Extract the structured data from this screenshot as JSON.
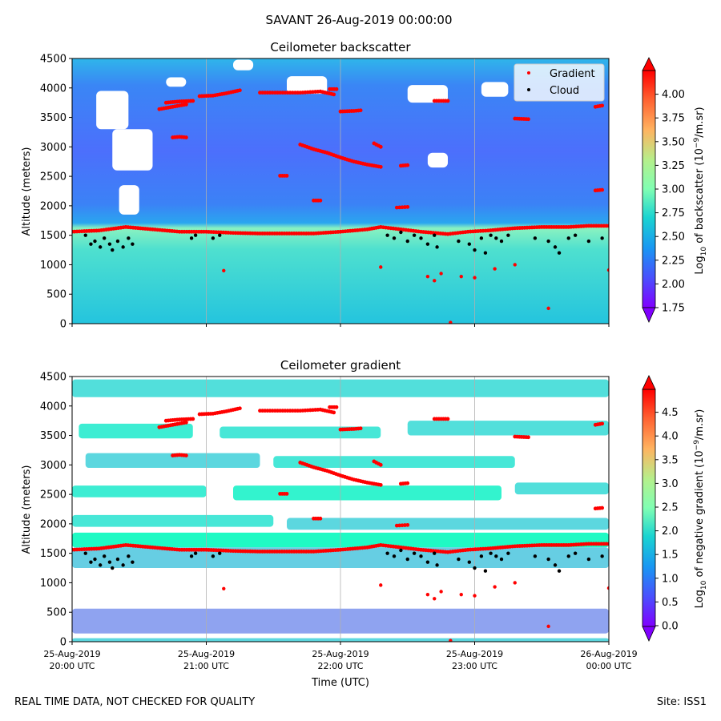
{
  "suptitle": "SAVANT 26-Aug-2019 00:00:00",
  "footer_left": "REAL TIME DATA, NOT CHECKED FOR QUALITY",
  "footer_right": "Site: ISS1",
  "colors": {
    "gradient_marker": "#ff0000",
    "cloud_marker": "#000000",
    "grid": "#b0b0b0"
  },
  "chart_data": [
    {
      "type": "heatmap",
      "title": "Ceilometer backscatter",
      "ylabel": "Altitude (meters)",
      "ylim": [
        0,
        4500
      ],
      "yticks": [
        0,
        500,
        1000,
        1500,
        2000,
        2500,
        3000,
        3500,
        4000,
        4500
      ],
      "xlim": [
        0,
        4
      ],
      "x_tick_labels": [],
      "vertical_grid": true,
      "colormap": "rainbow",
      "colorbar": {
        "label_prefix": "Log",
        "label_sub": "10",
        "label_suffix": " of backscatter (10",
        "label_exp": "−9",
        "label_end": "/m.sr)",
        "range": [
          1.75,
          4.25
        ],
        "ticks": [
          "1.75",
          "2.00",
          "2.25",
          "2.50",
          "2.75",
          "3.00",
          "3.25",
          "3.50",
          "3.75",
          "4.00"
        ],
        "extend": "both"
      },
      "legend": {
        "placement": "top-right",
        "entries": [
          "Gradient",
          "Cloud"
        ]
      },
      "clear_air_regions_altitude": [
        [
          0.18,
          0.42,
          3300,
          3950
        ],
        [
          0.3,
          0.6,
          2600,
          3300
        ],
        [
          0.35,
          0.5,
          1850,
          2350
        ],
        [
          1.6,
          1.9,
          3900,
          4200
        ],
        [
          2.5,
          2.8,
          3750,
          4050
        ],
        [
          3.05,
          3.25,
          3850,
          4100
        ],
        [
          2.65,
          2.8,
          2650,
          2900
        ],
        [
          1.2,
          1.35,
          4300,
          4480
        ],
        [
          0.7,
          0.85,
          4020,
          4180
        ]
      ]
    },
    {
      "type": "heatmap",
      "title": "Ceilometer gradient",
      "ylabel": "Altitude (meters)",
      "xlabel": "Time (UTC)",
      "ylim": [
        0,
        4500
      ],
      "yticks": [
        0,
        500,
        1000,
        1500,
        2000,
        2500,
        3000,
        3500,
        4000,
        4500
      ],
      "xlim": [
        0,
        4
      ],
      "x_tick_labels": [
        [
          "25-Aug-2019",
          "20:00 UTC"
        ],
        [
          "25-Aug-2019",
          "21:00 UTC"
        ],
        [
          "25-Aug-2019",
          "22:00 UTC"
        ],
        [
          "25-Aug-2019",
          "23:00 UTC"
        ],
        [
          "26-Aug-2019",
          "00:00 UTC"
        ]
      ],
      "vertical_grid": true,
      "colormap": "rainbow",
      "colorbar": {
        "label_prefix": "Log",
        "label_sub": "10",
        "label_suffix": " of negative gradient (10",
        "label_exp": "−9",
        "label_end": "/m.sr)",
        "range": [
          0,
          5
        ],
        "ticks": [
          "0.0",
          "0.5",
          "1.0",
          "1.5",
          "2.0",
          "2.5",
          "3.0",
          "3.5",
          "4.0",
          "4.5"
        ],
        "extend": "both"
      },
      "layers_altitude": [
        [
          0.0,
          4.0,
          4150,
          4450,
          1.7
        ],
        [
          0.05,
          0.9,
          3450,
          3700,
          1.9
        ],
        [
          1.1,
          2.3,
          3450,
          3650,
          1.8
        ],
        [
          2.5,
          4.0,
          3500,
          3750,
          1.7
        ],
        [
          0.1,
          1.4,
          2950,
          3200,
          1.6
        ],
        [
          1.5,
          3.3,
          2950,
          3150,
          1.8
        ],
        [
          0.0,
          1.0,
          2450,
          2650,
          1.9
        ],
        [
          1.2,
          3.2,
          2400,
          2650,
          2.0
        ],
        [
          3.3,
          4.0,
          2500,
          2700,
          1.7
        ],
        [
          0.0,
          1.5,
          1950,
          2150,
          1.8
        ],
        [
          1.6,
          4.0,
          1900,
          2100,
          1.6
        ],
        [
          0.0,
          4.0,
          1600,
          1850,
          2.2
        ],
        [
          0.0,
          4.0,
          1250,
          1600,
          1.5
        ],
        [
          0.0,
          4.0,
          140,
          560,
          1.1
        ],
        [
          0.0,
          4.0,
          0,
          60,
          1.6
        ]
      ]
    }
  ],
  "markers": {
    "cloud_time_altitude": [
      [
        0.1,
        1500
      ],
      [
        0.14,
        1350
      ],
      [
        0.17,
        1400
      ],
      [
        0.21,
        1300
      ],
      [
        0.24,
        1450
      ],
      [
        0.28,
        1350
      ],
      [
        0.3,
        1250
      ],
      [
        0.34,
        1400
      ],
      [
        0.38,
        1300
      ],
      [
        0.42,
        1450
      ],
      [
        0.45,
        1350
      ],
      [
        0.89,
        1450
      ],
      [
        0.92,
        1500
      ],
      [
        1.05,
        1450
      ],
      [
        1.1,
        1500
      ],
      [
        2.35,
        1500
      ],
      [
        2.4,
        1450
      ],
      [
        2.45,
        1550
      ],
      [
        2.5,
        1400
      ],
      [
        2.55,
        1500
      ],
      [
        2.6,
        1450
      ],
      [
        2.65,
        1350
      ],
      [
        2.7,
        1500
      ],
      [
        2.72,
        1300
      ],
      [
        2.88,
        1400
      ],
      [
        2.96,
        1350
      ],
      [
        3.0,
        1250
      ],
      [
        3.05,
        1450
      ],
      [
        3.08,
        1200
      ],
      [
        3.12,
        1500
      ],
      [
        3.16,
        1450
      ],
      [
        3.2,
        1400
      ],
      [
        3.25,
        1500
      ],
      [
        3.45,
        1450
      ],
      [
        3.55,
        1400
      ],
      [
        3.6,
        1300
      ],
      [
        3.63,
        1200
      ],
      [
        3.7,
        1450
      ],
      [
        3.75,
        1500
      ],
      [
        3.85,
        1400
      ],
      [
        3.95,
        1450
      ]
    ],
    "gradient_traces": [
      [
        [
          0.0,
          1560
        ],
        [
          0.2,
          1580
        ],
        [
          0.4,
          1640
        ],
        [
          0.6,
          1600
        ],
        [
          0.8,
          1560
        ],
        [
          1.0,
          1560
        ],
        [
          1.2,
          1540
        ],
        [
          1.4,
          1530
        ],
        [
          1.6,
          1530
        ],
        [
          1.8,
          1530
        ],
        [
          2.0,
          1560
        ],
        [
          2.2,
          1600
        ],
        [
          2.3,
          1640
        ],
        [
          2.45,
          1600
        ],
        [
          2.6,
          1560
        ],
        [
          2.8,
          1520
        ],
        [
          2.95,
          1560
        ],
        [
          3.1,
          1580
        ],
        [
          3.3,
          1620
        ],
        [
          3.5,
          1640
        ],
        [
          3.7,
          1640
        ],
        [
          3.85,
          1660
        ],
        [
          4.0,
          1660
        ]
      ],
      [
        [
          0.65,
          3640
        ],
        [
          0.75,
          3680
        ],
        [
          0.85,
          3720
        ]
      ],
      [
        [
          0.7,
          3750
        ],
        [
          0.8,
          3770
        ],
        [
          0.9,
          3780
        ]
      ],
      [
        [
          0.95,
          3860
        ],
        [
          1.05,
          3870
        ],
        [
          1.15,
          3910
        ],
        [
          1.25,
          3960
        ]
      ],
      [
        [
          1.4,
          3920
        ],
        [
          1.55,
          3920
        ],
        [
          1.7,
          3920
        ],
        [
          1.85,
          3940
        ],
        [
          1.95,
          3890
        ]
      ],
      [
        [
          2.0,
          3600
        ],
        [
          2.1,
          3610
        ],
        [
          2.15,
          3620
        ]
      ],
      [
        [
          1.7,
          3040
        ],
        [
          1.8,
          2960
        ],
        [
          1.9,
          2900
        ],
        [
          2.0,
          2820
        ],
        [
          2.1,
          2750
        ],
        [
          2.2,
          2700
        ],
        [
          2.3,
          2660
        ]
      ],
      [
        [
          2.25,
          3060
        ],
        [
          2.3,
          3000
        ]
      ],
      [
        [
          2.7,
          3780
        ],
        [
          2.8,
          3780
        ]
      ],
      [
        [
          3.3,
          3480
        ],
        [
          3.4,
          3470
        ]
      ],
      [
        [
          0.75,
          3160
        ],
        [
          0.8,
          3170
        ],
        [
          0.85,
          3160
        ]
      ],
      [
        [
          1.55,
          2510
        ],
        [
          1.6,
          2510
        ]
      ],
      [
        [
          2.45,
          2680
        ],
        [
          2.5,
          2690
        ]
      ],
      [
        [
          2.42,
          1970
        ],
        [
          2.5,
          1980
        ]
      ],
      [
        [
          1.8,
          2090
        ],
        [
          1.85,
          2090
        ]
      ],
      [
        [
          3.9,
          2260
        ],
        [
          3.95,
          2270
        ]
      ],
      [
        [
          3.9,
          3680
        ],
        [
          3.95,
          3700
        ]
      ],
      [
        [
          1.92,
          3980
        ],
        [
          1.97,
          3980
        ]
      ]
    ],
    "gradient_scatter": [
      [
        1.13,
        900
      ],
      [
        2.3,
        960
      ],
      [
        2.7,
        730
      ],
      [
        2.75,
        850
      ],
      [
        2.9,
        800
      ],
      [
        3.0,
        780
      ],
      [
        3.15,
        930
      ],
      [
        3.55,
        260
      ],
      [
        4.0,
        910
      ],
      [
        2.82,
        20
      ],
      [
        3.3,
        1000
      ],
      [
        2.65,
        800
      ]
    ]
  }
}
